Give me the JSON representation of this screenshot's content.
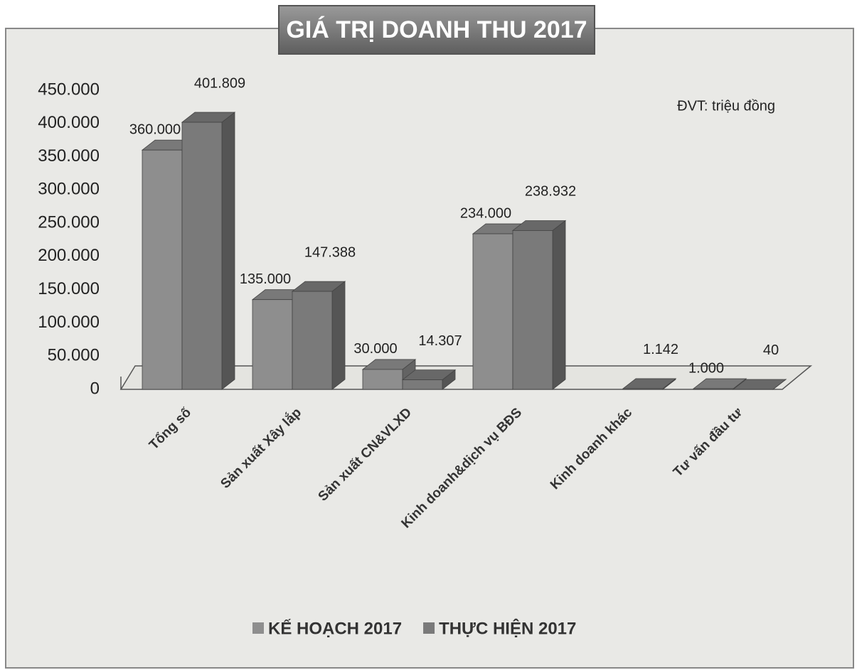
{
  "chart_data": {
    "type": "bar3d",
    "title": "GIÁ TRỊ DOANH THU 2017",
    "annotation": "ĐVT: triệu đồng",
    "categories": [
      "Tổng số",
      "Sản xuất Xây lắp",
      "Sản xuất CN&VLXD",
      "Kinh doanh&dịch vụ BĐS",
      "Kinh doanh khác",
      "Tư vấn đầu tư"
    ],
    "series": [
      {
        "name": "KẾ HOẠCH 2017",
        "color": "#8e8e8e",
        "values": [
          360000,
          135000,
          30000,
          234000,
          null,
          1000
        ],
        "value_labels": [
          "360.000",
          "135.000",
          "30.000",
          "234.000",
          null,
          "1.000"
        ]
      },
      {
        "name": "THỰC HIỆN 2017",
        "color": "#7a7a7a",
        "values": [
          401809,
          147388,
          14307,
          238932,
          1142,
          40
        ],
        "value_labels": [
          "401.809",
          "147.388",
          "14.307",
          "238.932",
          "1.142",
          "40"
        ]
      }
    ],
    "ylim": [
      0,
      450000
    ],
    "yticks": [
      0,
      {
        "value": 50000,
        "label": "50.000"
      },
      {
        "value": 100000,
        "label": "100.000"
      },
      {
        "value": 150000,
        "label": "150.000"
      },
      {
        "value": 200000,
        "label": "200.000"
      },
      {
        "value": 250000,
        "label": "250.000"
      },
      {
        "value": 300000,
        "label": "300.000"
      },
      {
        "value": 350000,
        "label": "350.000"
      },
      {
        "value": 400000,
        "label": "400.000"
      },
      {
        "value": 450000,
        "label": "450.000"
      }
    ],
    "legend": "bottom"
  }
}
